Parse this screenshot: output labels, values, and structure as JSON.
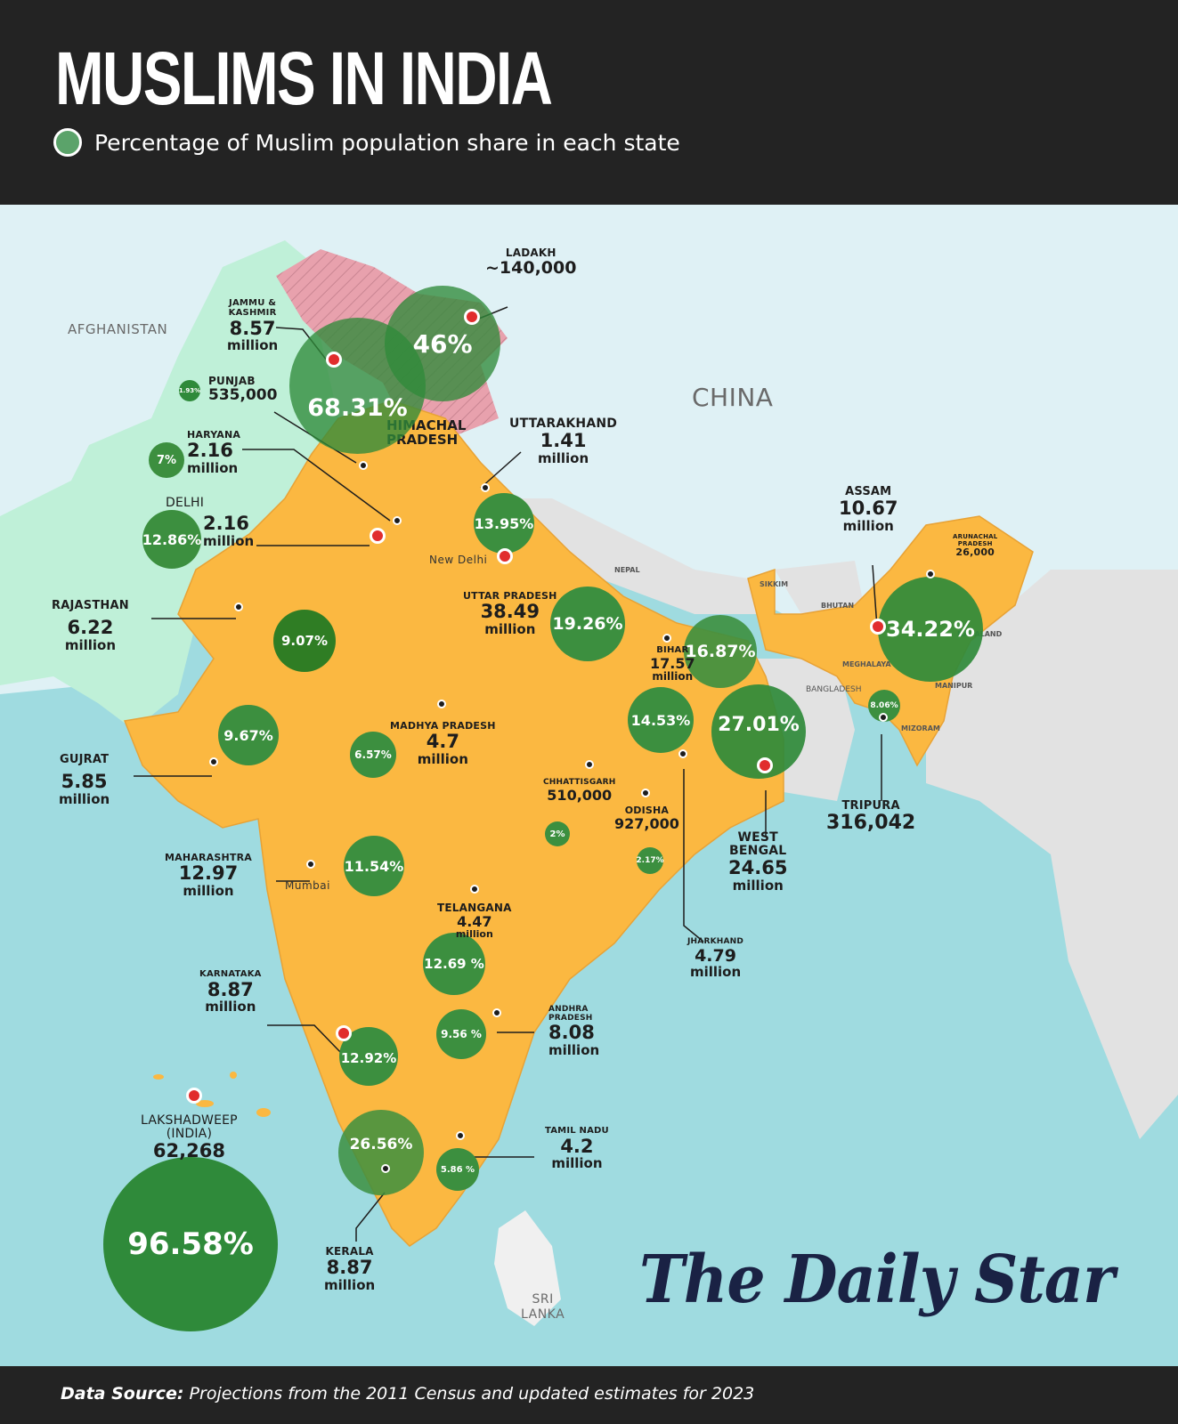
{
  "header": {
    "title": "MUSLIMS IN INDIA",
    "legend_label": "Percentage of Muslim population share in each state"
  },
  "footer": {
    "source_label": "Data Source:",
    "source_text": "Projections from the 2011 Census and updated estimates for 2023"
  },
  "brand": "The Daily Star",
  "countries": {
    "afghanistan": "AFGHANISTAN",
    "china": "CHINA",
    "nepal": "NEPAL",
    "bhutan": "BHUTAN",
    "bangladesh": "BANGLADESH",
    "sri_lanka": [
      "SRI",
      "LANKA"
    ]
  },
  "cities": {
    "new_delhi": "New Delhi",
    "mumbai": "Mumbai"
  },
  "small_states": {
    "sikkim": "SIKKIM",
    "meghalaya": "MEGHALAYA",
    "nagaland": "NAGALAND",
    "manipur": "MANIPUR",
    "mizoram": "MIZORAM",
    "himachal": [
      "HIMACHAL",
      "PRADESH"
    ]
  },
  "states": {
    "ladakh": {
      "name": "LADAKH",
      "population": "~140,000",
      "unit": "",
      "share": "46%"
    },
    "jammu_kashmir": {
      "name": [
        "JAMMU &",
        "KASHMIR"
      ],
      "population": "8.57",
      "unit": "million",
      "share": "68.31%"
    },
    "punjab": {
      "name": "PUNJAB",
      "population": "535,000",
      "unit": "",
      "share": "1.93%"
    },
    "haryana": {
      "name": "HARYANA",
      "population": "2.16",
      "unit": "million",
      "share": "7%"
    },
    "delhi": {
      "name": "DELHI",
      "population": "2.16",
      "unit": "million",
      "share": "12.86%"
    },
    "uttarakhand": {
      "name": "UTTARAKHAND",
      "population": "1.41",
      "unit": "million",
      "share": "13.95%"
    },
    "rajasthan": {
      "name": "RAJASTHAN",
      "population": "6.22",
      "unit": "million",
      "share": "9.07%"
    },
    "uttar_pradesh": {
      "name": "UTTAR PRADESH",
      "population": "38.49",
      "unit": "million",
      "share": "19.26%"
    },
    "assam": {
      "name": "ASSAM",
      "population": "10.67",
      "unit": "million",
      "share": "34.22%"
    },
    "arunachal": {
      "name": [
        "ARUNACHAL",
        "PRADESH"
      ],
      "population": "26,000",
      "unit": "",
      "share": ""
    },
    "bihar": {
      "name": "BIHAR",
      "population": "17.57",
      "unit": "million",
      "share": "16.87%"
    },
    "gujrat": {
      "name": "GUJRAT",
      "population": "5.85",
      "unit": "million",
      "share": "9.67%"
    },
    "madhya_pradesh": {
      "name": "MADHYA PRADESH",
      "population": "4.7",
      "unit": "million",
      "share": "6.57%"
    },
    "chhattisgarh": {
      "name": "CHHATTISGARH",
      "population": "510,000",
      "unit": "",
      "share": "2%"
    },
    "odisha": {
      "name": "ODISHA",
      "population": "927,000",
      "unit": "",
      "share": "2.17%"
    },
    "jharkhand": {
      "name": "JHARKHAND",
      "population": "4.79",
      "unit": "million",
      "share": "14.53%"
    },
    "west_bengal": {
      "name": [
        "WEST",
        "BENGAL"
      ],
      "population": "24.65",
      "unit": "million",
      "share": "27.01%"
    },
    "tripura": {
      "name": "TRIPURA",
      "population": "316,042",
      "unit": "",
      "share": "8.06%"
    },
    "maharashtra": {
      "name": "MAHARASHTRA",
      "population": "12.97",
      "unit": "million",
      "share": "11.54%"
    },
    "telangana": {
      "name": "TELANGANA",
      "population": "4.47",
      "unit": "million",
      "share": "12.69 %"
    },
    "karnataka": {
      "name": "KARNATAKA",
      "population": "8.87",
      "unit": "million",
      "share": "12.92%"
    },
    "andhra_pradesh": {
      "name": [
        "ANDHRA",
        "PRADESH"
      ],
      "population": "8.08",
      "unit": "million",
      "share": "9.56 %"
    },
    "lakshadweep": {
      "name": [
        "LAKSHADWEEP",
        "(INDIA)"
      ],
      "population": "62,268",
      "unit": "",
      "share": "96.58%"
    },
    "kerala": {
      "name": "KERALA",
      "population": "8.87",
      "unit": "million",
      "share": "26.56%"
    },
    "tamil_nadu": {
      "name": "TAMIL NADU",
      "population": "4.2",
      "unit": "million",
      "share": "5.86 %"
    }
  },
  "colors": {
    "header_bg": "#232323",
    "sea": "#9fdbe0",
    "land_north": "#dff1f5",
    "india": "#fbb841",
    "pakistan": "#bff0d8",
    "neighbors": "#e2e2e2",
    "disputed": "#e8a1ad",
    "bubble_green": "#2f8a3a",
    "marker_red": "#e12d2d"
  }
}
